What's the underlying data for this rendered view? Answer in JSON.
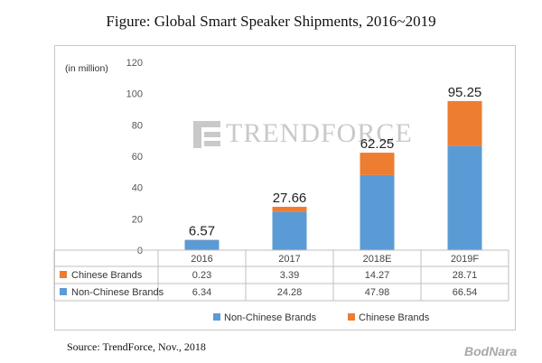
{
  "figure": {
    "title": "Figure: Global Smart Speaker Shipments, 2016~2019",
    "source": "Source: TrendForce, Nov., 2018",
    "watermark": "TRENDFORCE",
    "corner_logo": "BodNara"
  },
  "chart_data": {
    "type": "bar",
    "stacked": true,
    "unit_label": "(in million)",
    "categories": [
      "2016",
      "2017",
      "2018E",
      "2019F"
    ],
    "series": [
      {
        "name": "Non-Chinese Brands",
        "values": [
          6.34,
          24.28,
          47.98,
          66.54
        ],
        "value_labels": [
          "6.34",
          "24.28",
          "47.98",
          "66.54"
        ],
        "color": "#5b9bd5"
      },
      {
        "name": "Chinese Brands",
        "values": [
          0.23,
          3.39,
          14.27,
          28.71
        ],
        "value_labels": [
          "0.23",
          "3.39",
          "14.27",
          "28.71"
        ],
        "color": "#ed7d31"
      }
    ],
    "totals": [
      6.57,
      27.66,
      62.25,
      95.25
    ],
    "total_labels": [
      "6.57",
      "27.66",
      "62.25",
      "95.25"
    ],
    "ylim": [
      0,
      120
    ],
    "yticks": [
      "0",
      "20",
      "40",
      "60",
      "80",
      "100",
      "120"
    ],
    "table_row_order": [
      "Chinese Brands",
      "Non-Chinese Brands"
    ],
    "legend_order": [
      "Non-Chinese Brands",
      "Chinese Brands"
    ],
    "legend_position": "bottom",
    "grid": false
  }
}
